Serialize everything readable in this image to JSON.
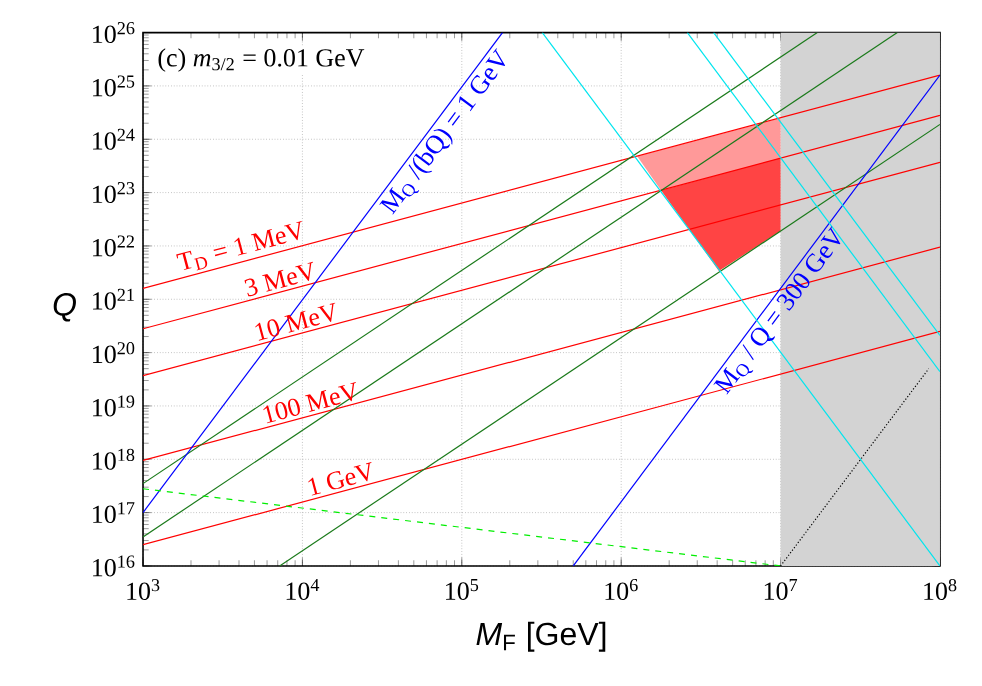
{
  "chart_data": {
    "type": "line",
    "xlabel": "*M*$_{F}$ [GeV]",
    "ylabel": "*Q*",
    "log": "xy",
    "grid": true,
    "xlim": [
      1000,
      100000000
    ],
    "ylim": [
      1e+16,
      1e+26
    ],
    "xticks": [
      {
        "value": 1000,
        "label": "10$^{3}$"
      },
      {
        "value": 10000,
        "label": "10$^{4}$"
      },
      {
        "value": 100000,
        "label": "10$^{5}$"
      },
      {
        "value": 1000000,
        "label": "10$^{6}$"
      },
      {
        "value": 10000000,
        "label": "10$^{7}$"
      },
      {
        "value": 100000000,
        "label": "10$^{8}$"
      }
    ],
    "yticks": [
      {
        "value": 1e+16,
        "label": "10$^{16}$"
      },
      {
        "value": 1e+17,
        "label": "10$^{17}$"
      },
      {
        "value": 1e+18,
        "label": "10$^{18}$"
      },
      {
        "value": 1e+19,
        "label": "10$^{19}$"
      },
      {
        "value": 1e+20,
        "label": "10$^{20}$"
      },
      {
        "value": 1e+21,
        "label": "10$^{21}$"
      },
      {
        "value": 1e+22,
        "label": "10$^{22}$"
      },
      {
        "value": 1e+23,
        "label": "10$^{23}$"
      },
      {
        "value": 1e+24,
        "label": "10$^{24}$"
      },
      {
        "value": 1e+25,
        "label": "10$^{25}$"
      },
      {
        "value": 1e+26,
        "label": "10$^{26}$"
      }
    ],
    "bands": [
      {
        "axis": "x",
        "from": 10000000,
        "to": 100000000,
        "color": "#d3d3d3"
      }
    ],
    "annotations": [
      "(c) *m*$_{3/2}$ = 0.01 GeV"
    ],
    "series": [
      {
        "type": "area",
        "color": "#ff9999",
        "x": [
          1260000,
          10000000,
          10000000,
          1780000
        ],
        "values": [
          4.8e+23,
          2.5e+24,
          4.5e+23,
          1.1e+23
        ]
      },
      {
        "type": "area",
        "color": "#ff4444",
        "x": [
          1780000,
          10000000,
          10000000,
          4100000
        ],
        "values": [
          1.1e+23,
          4.5e+23,
          1.9e+22,
          3.4e+21
        ]
      },
      {
        "name": "T$_{D}$ = 1 MeV",
        "color": "#ff0000",
        "x": [
          1000,
          100000000
        ],
        "values": [
          1.6e+21,
          1.6e+25
        ]
      },
      {
        "name": "3 MeV",
        "color": "#ff0000",
        "x": [
          1000,
          100000000
        ],
        "values": [
          2.8e+20,
          2.8e+24
        ]
      },
      {
        "name": "10 MeV",
        "color": "#ff0000",
        "x": [
          1000,
          100000000
        ],
        "values": [
          3.7e+19,
          3.7e+23
        ]
      },
      {
        "name": "100 MeV",
        "color": "#ff0000",
        "x": [
          1000,
          100000000
        ],
        "values": [
          9.5e+17,
          9.5e+21
        ]
      },
      {
        "name": "1 GeV",
        "color": "#ff0000",
        "x": [
          1000,
          100000000
        ],
        "values": [
          2.5e+16,
          2.5e+20
        ]
      },
      {
        "color": "#1a7a1a",
        "x": [
          1000,
          17000000
        ],
        "values": [
          3.5e+17,
          1e+26
        ]
      },
      {
        "color": "#1a7a1a",
        "x": [
          1000,
          54000000
        ],
        "values": [
          3.5e+16,
          1e+26
        ]
      },
      {
        "color": "#1a7a1a",
        "x": [
          7200,
          100000000
        ],
        "values": [
          1e+16,
          1.9e+24
        ]
      },
      {
        "name": "M$_{Q}$ /(bQ) = 1 GeV",
        "color": "#0000ff",
        "x": [
          1000,
          180000
        ],
        "values": [
          1e+17,
          1e+26
        ]
      },
      {
        "name": "M$_{Q}$ / Q = 300 GeV",
        "color": "#0000ff",
        "x": [
          500000,
          100000000
        ],
        "values": [
          1e+16,
          1.6e+25
        ]
      },
      {
        "color": "#00e5ee",
        "x": [
          320000,
          100000000
        ],
        "values": [
          1e+26,
          1e+16
        ]
      },
      {
        "color": "#00e5ee",
        "x": [
          2600000,
          100000000
        ],
        "values": [
          1e+26,
          4.4e+19
        ]
      },
      {
        "color": "#00e5ee",
        "x": [
          3800000,
          100000000
        ],
        "values": [
          1e+26,
          2.1e+20
        ]
      },
      {
        "color": "#00ee00",
        "line_style": "dashed",
        "x": [
          1000,
          10000000
        ],
        "values": [
          2.8e+17,
          1e+16
        ]
      },
      {
        "color": "#000000",
        "line_style": "dotted",
        "x": [
          10000000,
          85000000
        ],
        "values": [
          1e+16,
          5e+19
        ]
      }
    ]
  }
}
